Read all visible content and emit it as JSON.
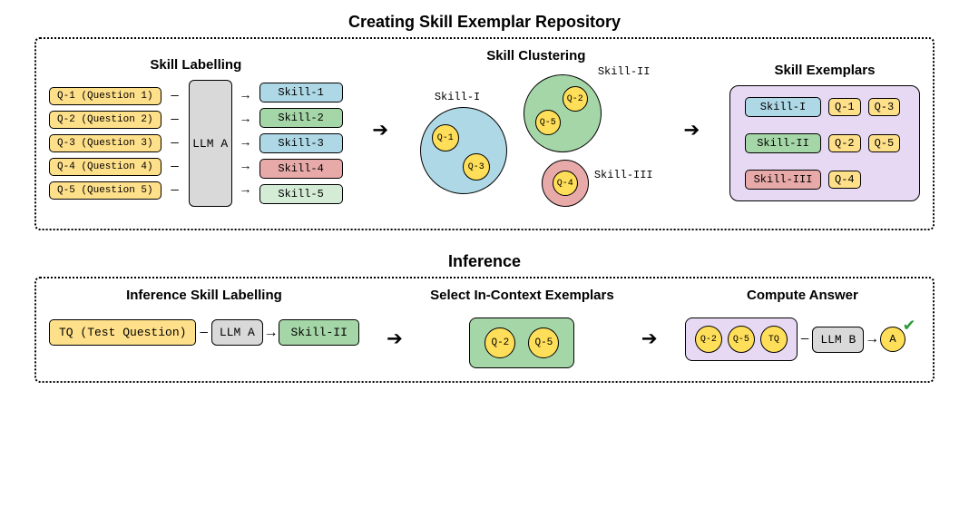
{
  "titles": {
    "top": "Creating Skill Exemplar Repository",
    "bottom": "Inference",
    "skill_labelling": "Skill Labelling",
    "skill_clustering": "Skill Clustering",
    "skill_exemplars": "Skill Exemplars",
    "inf_labelling": "Inference Skill Labelling",
    "select_exemplars": "Select In-Context Exemplars",
    "compute_answer": "Compute Answer"
  },
  "font_sizes": {
    "main_title": 18,
    "section_title": 15,
    "box_text": 12,
    "cluster_label": 12,
    "llm_text": 13
  },
  "colors": {
    "yellow_fill": "#ffe08a",
    "yellow_token": "#ffdf5a",
    "blue_fill": "#aed8e6",
    "green_fill": "#a5d6a7",
    "pale_green": "#d4ecd5",
    "red_fill": "#e8a9a9",
    "purple_fill": "#e7d9f3",
    "llm_fill": "#d9d9d9",
    "border": "#000000",
    "background": "#ffffff",
    "checkmark": "#2d9a3c"
  },
  "questions": [
    {
      "id": "Q-1",
      "full": "Q-1 (Question 1)"
    },
    {
      "id": "Q-2",
      "full": "Q-2 (Question 2)"
    },
    {
      "id": "Q-3",
      "full": "Q-3 (Question 3)"
    },
    {
      "id": "Q-4",
      "full": "Q-4 (Question 4)"
    },
    {
      "id": "Q-5",
      "full": "Q-5 (Question 5)"
    }
  ],
  "skills": [
    {
      "label": "Skill-1",
      "color": "#aed8e6"
    },
    {
      "label": "Skill-2",
      "color": "#a5d6a7"
    },
    {
      "label": "Skill-3",
      "color": "#aed8e6"
    },
    {
      "label": "Skill-4",
      "color": "#e8a9a9"
    },
    {
      "label": "Skill-5",
      "color": "#d4ecd5"
    }
  ],
  "clusters": [
    {
      "label": "Skill-I",
      "color": "#aed8e6",
      "members": [
        "Q-1",
        "Q-3"
      ]
    },
    {
      "label": "Skill-II",
      "color": "#a5d6a7",
      "members": [
        "Q-2",
        "Q-5"
      ]
    },
    {
      "label": "Skill-III",
      "color": "#e8a9a9",
      "members": [
        "Q-4"
      ]
    }
  ],
  "exemplars": [
    {
      "skill": "Skill-I",
      "skill_color": "#aed8e6",
      "qs": [
        "Q-1",
        "Q-3"
      ]
    },
    {
      "skill": "Skill-II",
      "skill_color": "#a5d6a7",
      "qs": [
        "Q-2",
        "Q-5"
      ]
    },
    {
      "skill": "Skill-III",
      "skill_color": "#e8a9a9",
      "qs": [
        "Q-4"
      ]
    }
  ],
  "llm_a": "LLM A",
  "llm_b": "LLM B",
  "inference": {
    "tq_label": "TQ (Test Question)",
    "tq_short": "TQ",
    "skill_match": "Skill-II",
    "skill_match_color": "#a5d6a7",
    "selected": [
      "Q-2",
      "Q-5"
    ],
    "compute_tokens": [
      "Q-2",
      "Q-5",
      "TQ"
    ],
    "answer": "A"
  }
}
